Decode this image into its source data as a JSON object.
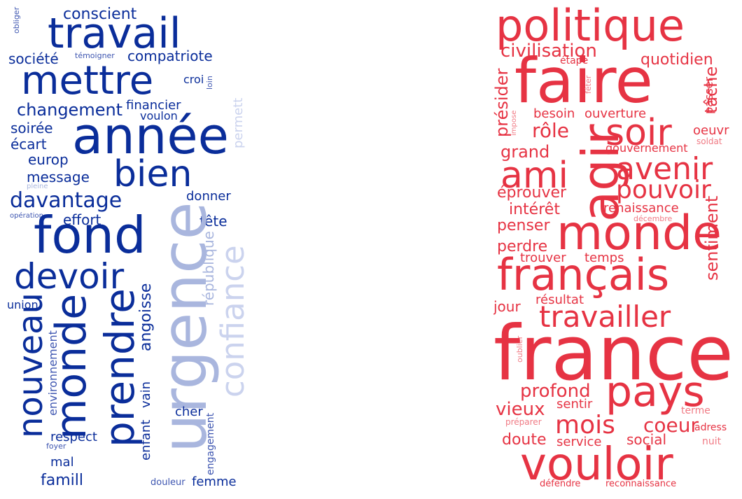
{
  "colors": {
    "left_dark": "#0a2d9a",
    "left_mid": "#3d55b0",
    "left_light": "#a9b6de",
    "left_pale": "#cbd3ee",
    "right_red": "#e63343",
    "right_light": "#f07a84"
  },
  "left_cloud": {
    "words": [
      "obliger",
      "conscient",
      "travail",
      "société",
      "témoigner",
      "compatriote",
      "mettre",
      "croi",
      "loin",
      "changement",
      "financier",
      "voulon",
      "soirée",
      "année",
      "permett",
      "écart",
      "europ",
      "bien",
      "message",
      "pleine",
      "davantage",
      "donner",
      "opération",
      "effort",
      "fête",
      "fond",
      "république",
      "devoir",
      "confiance",
      "union",
      "urgence",
      "angoisse",
      "nouveau",
      "monde",
      "prendre",
      "environnement",
      "vain",
      "enfant",
      "respect",
      "engagement",
      "cher",
      "foyer",
      "mal",
      "famill",
      "douleur",
      "femme"
    ]
  },
  "right_cloud": {
    "words": [
      "politique",
      "civilisation",
      "quotidien",
      "étape",
      "faire",
      "présider",
      "fêter",
      "tâche",
      "passer",
      "besoin",
      "ouverture",
      "impose",
      "soir",
      "oeuvr",
      "rôle",
      "soldat",
      "grand",
      "agir",
      "gouvernement",
      "ami",
      "avenir",
      "pouvoir",
      "éprouver",
      "intérêt",
      "renaissance",
      "décembre",
      "penser",
      "monde",
      "sentiment",
      "perdre",
      "trouver",
      "temps",
      "français",
      "jour",
      "résultat",
      "travailler",
      "oublier",
      "france",
      "profond",
      "pays",
      "vieux",
      "sentir",
      "terme",
      "préparer",
      "mois",
      "coeur",
      "adress",
      "doute",
      "service",
      "social",
      "nuit",
      "vouloir",
      "défendre",
      "reconnaissance"
    ]
  }
}
